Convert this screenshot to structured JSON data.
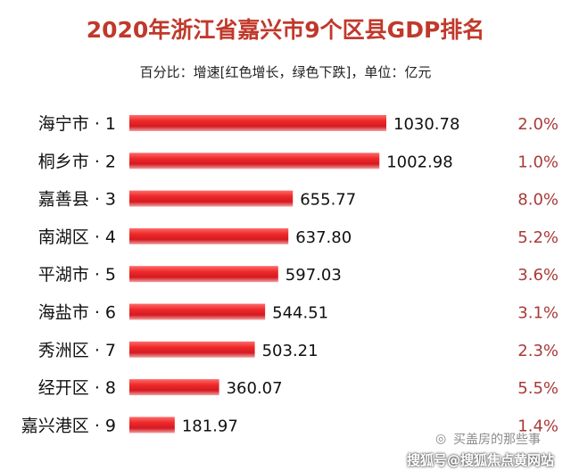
{
  "header": {
    "title": "2020年浙江省嘉兴市9个区县GDP排名",
    "subtitle": "百分比：增速[红色增长，绿色下跌]，单位：亿元"
  },
  "chart_data": {
    "type": "bar",
    "orientation": "horizontal",
    "categories": [
      "海宁市 · 1",
      "桐乡市 · 2",
      "嘉善县 · 3",
      "南湖区 · 4",
      "平湖市 · 5",
      "海盐市 · 6",
      "秀洲区 · 7",
      "经开区 · 8",
      "嘉兴港区 · 9"
    ],
    "values": [
      1030.78,
      1002.98,
      655.77,
      637.8,
      597.03,
      544.51,
      503.21,
      360.07,
      181.97
    ],
    "value_labels": [
      "1030.78",
      "1002.98",
      "655.77",
      "637.80",
      "597.03",
      "544.51",
      "503.21",
      "360.07",
      "181.97"
    ],
    "growth": [
      "2.0%",
      "1.0%",
      "8.0%",
      "5.2%",
      "3.6%",
      "3.1%",
      "2.3%",
      "5.5%",
      "1.4%"
    ],
    "bar_color": "#e8202a",
    "growth_color": "#a93a3a",
    "title": "2020年浙江省嘉兴市9个区县GDP排名",
    "xlabel": "",
    "ylabel": "",
    "xlim": [
      0,
      1030.78
    ],
    "grid": false
  },
  "watermark": {
    "icon": "wechat-icon",
    "author": "买盖房的那些事",
    "site": "搜狐号@搜狐焦点黄网站"
  }
}
